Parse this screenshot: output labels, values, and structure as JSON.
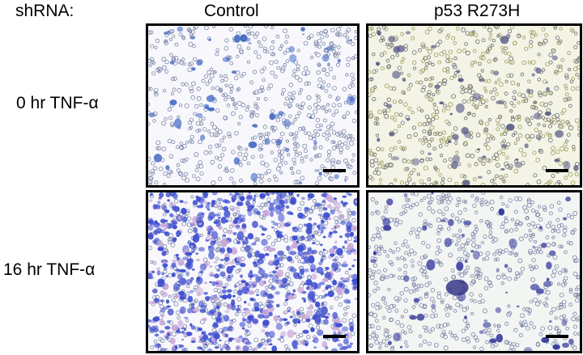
{
  "header": {
    "row_prefix": "shRNA:",
    "columns": [
      "Control",
      "p53 R273H"
    ]
  },
  "rows": [
    "0 hr TNF-α",
    "16 hr TNF-α"
  ],
  "panels": [
    {
      "condition": "Control, 0 hr TNF-α",
      "stain_color": "#4a6fc8",
      "density": "sparse"
    },
    {
      "condition": "p53 R273H, 0 hr TNF-α",
      "stain_color": "#5a5f8a",
      "density": "sparse"
    },
    {
      "condition": "Control, 16 hr TNF-α",
      "stain_color": "#3f4fcf",
      "density": "dense"
    },
    {
      "condition": "p53 R273H, 16 hr TNF-α",
      "stain_color": "#3a3fa0",
      "density": "sparse"
    }
  ]
}
